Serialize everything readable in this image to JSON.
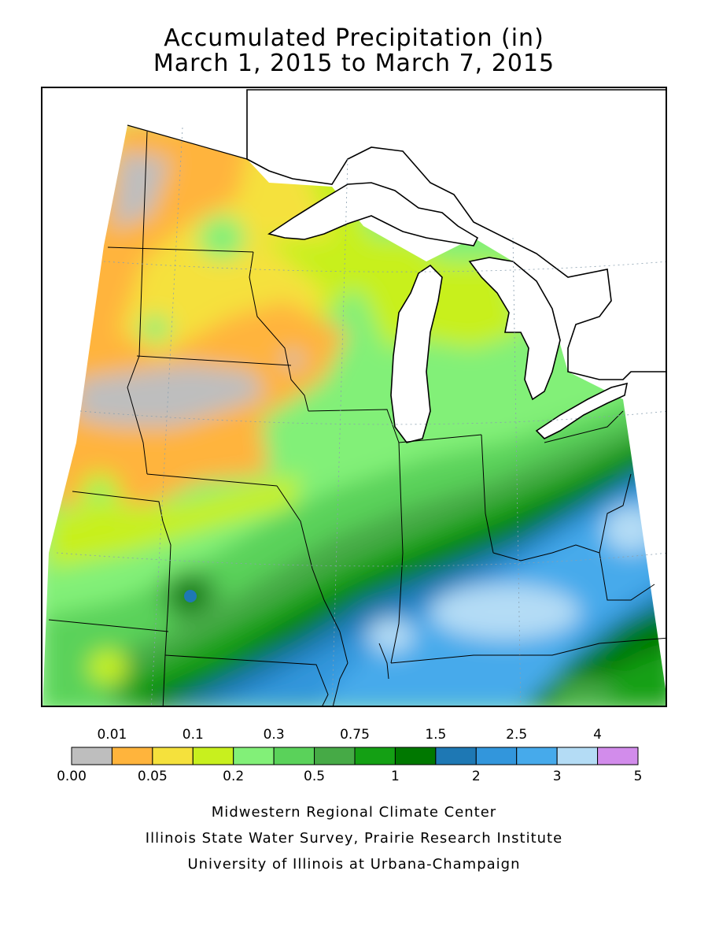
{
  "title": {
    "line1": "Accumulated Precipitation (in)",
    "line2": "March 1, 2015 to March 7, 2015"
  },
  "legend": {
    "bins": [
      {
        "color": "#bebebe"
      },
      {
        "color": "#ffb43c"
      },
      {
        "color": "#f5e13c"
      },
      {
        "color": "#c8f01e"
      },
      {
        "color": "#82f078"
      },
      {
        "color": "#5ad25a"
      },
      {
        "color": "#46aa46"
      },
      {
        "color": "#14a014"
      },
      {
        "color": "#007800"
      },
      {
        "color": "#1e78b4"
      },
      {
        "color": "#3296dc"
      },
      {
        "color": "#46aaeb"
      },
      {
        "color": "#b4dcf5"
      },
      {
        "color": "#d28ceb"
      }
    ],
    "top_labels": [
      "0.01",
      "0.1",
      "0.3",
      "0.75",
      "1.5",
      "2.5",
      "4"
    ],
    "bottom_labels": [
      "0.00",
      "0.05",
      "0.2",
      "0.5",
      "1",
      "2",
      "3",
      "5"
    ]
  },
  "credits": {
    "line1": "Midwestern Regional Climate Center",
    "line2": "Illinois State Water Survey, Prairie Research Institute",
    "line3": "University of Illinois at Urbana-Champaign"
  }
}
